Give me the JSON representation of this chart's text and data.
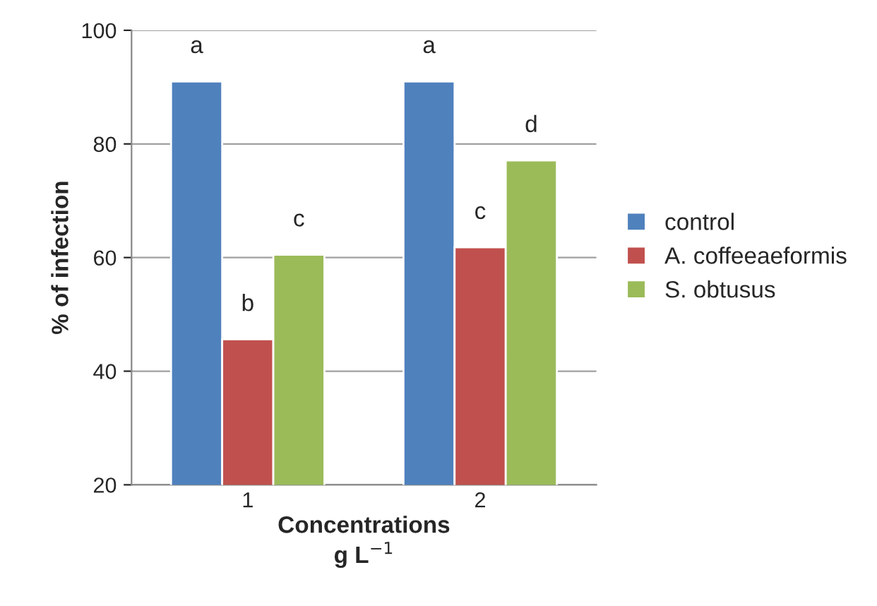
{
  "chart_data": {
    "type": "bar",
    "xlabel": "Concentrations\ng L$^{−1}$",
    "ylabel": "% of infection",
    "categories": [
      "1",
      "2"
    ],
    "series": [
      {
        "name": "control",
        "color": "#4f81bd",
        "values": [
          91.0,
          91.0
        ],
        "value_labels": [
          "a",
          "a"
        ]
      },
      {
        "name": "A. coffeeaeformis",
        "color": "#c0504d",
        "values": [
          45.6,
          61.8
        ],
        "value_labels": [
          "b",
          "c"
        ]
      },
      {
        "name": "S. obtusus",
        "color": "#9bbb59",
        "values": [
          60.5,
          77.1
        ],
        "value_labels": [
          "c",
          "d"
        ]
      }
    ],
    "ylim": [
      20,
      100
    ],
    "yticks": [
      20,
      40,
      60,
      80,
      100
    ],
    "grid": "y",
    "legend": "right"
  }
}
